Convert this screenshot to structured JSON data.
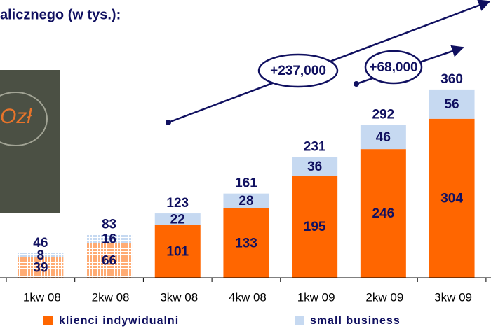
{
  "chart_data": {
    "type": "stacked-bar",
    "title": "alicznego (w tys.):",
    "categories": [
      "1kw 08",
      "2kw 08",
      "3kw 08",
      "4kw 08",
      "1kw 09",
      "2kw 09",
      "3kw 09"
    ],
    "series": [
      {
        "name": "klienci indywidualni",
        "color": "#ff6600",
        "values": [
          39,
          66,
          101,
          133,
          195,
          246,
          304
        ]
      },
      {
        "name": "small business",
        "color": "#c6d9f1",
        "values": [
          8,
          16,
          22,
          28,
          36,
          46,
          56
        ]
      }
    ],
    "totals": [
      46,
      83,
      123,
      161,
      231,
      292,
      360
    ],
    "hatched": [
      true,
      true,
      false,
      false,
      false,
      false,
      false
    ],
    "ylim": [
      0,
      400
    ],
    "annotations": [
      "+237,000",
      "+68,000"
    ],
    "image_text": "Ozł"
  }
}
